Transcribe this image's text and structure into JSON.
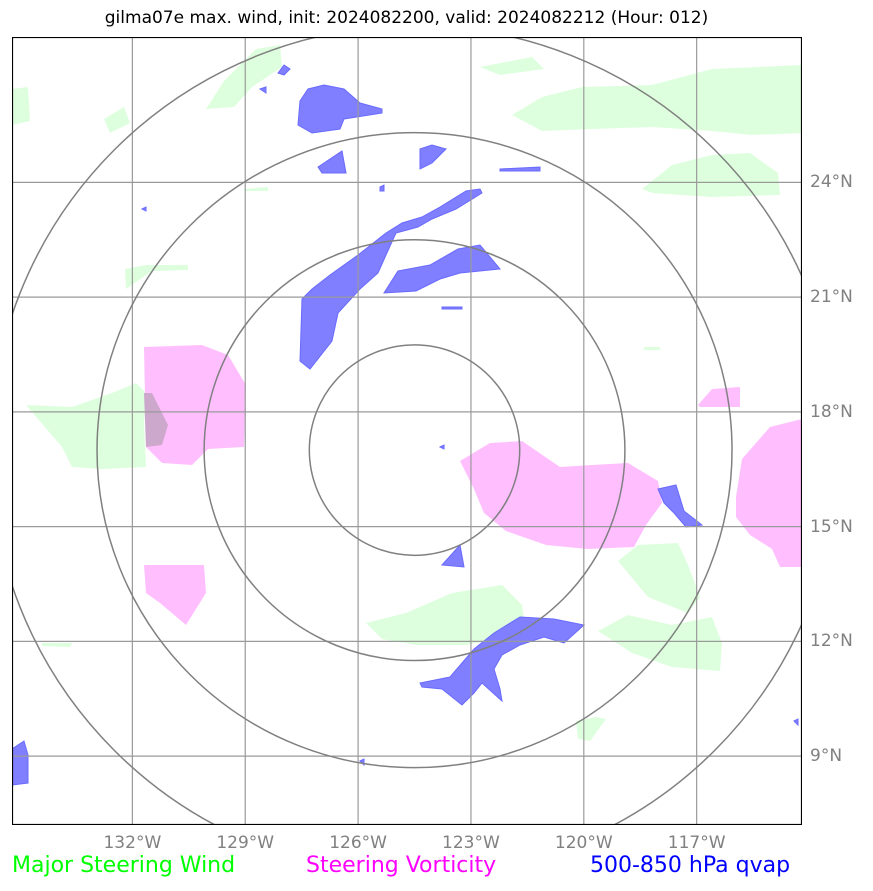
{
  "title": "gilma07e max. wind, init: 2024082200, valid: 2024082212 (Hour: 012)",
  "map": {
    "lon_range": [
      -135.2,
      -114.2
    ],
    "lat_range": [
      7.2,
      27.8
    ],
    "center": {
      "lon": -124.5,
      "lat": 17.0
    },
    "lat_ticks": [
      {
        "value": 24,
        "label": "24°N"
      },
      {
        "value": 21,
        "label": "21°N"
      },
      {
        "value": 18,
        "label": "18°N"
      },
      {
        "value": 15,
        "label": "15°N"
      },
      {
        "value": 12,
        "label": "12°N"
      },
      {
        "value": 9,
        "label": "9°N"
      }
    ],
    "lon_ticks": [
      {
        "value": -132,
        "label": "132°W"
      },
      {
        "value": -129,
        "label": "129°W"
      },
      {
        "value": -126,
        "label": "126°W"
      },
      {
        "value": -123,
        "label": "123°W"
      },
      {
        "value": -120,
        "label": "120°W"
      },
      {
        "value": -117,
        "label": "117°W"
      }
    ]
  },
  "legend": {
    "wind_label": "Major Steering Wind",
    "vorticity_label": "Steering Vorticity",
    "qvap_label": "500-850 hPa qvap"
  },
  "colors": {
    "wind": "#00ff00",
    "wind_fill": "#ddffdd",
    "vorticity": "#ff00ff",
    "vorticity_fill": "#ffbfff",
    "qvap": "#0000ff",
    "qvap_fill": "#7f7fff",
    "grid": "#9a9a9a",
    "rings": "#808080",
    "axis_text": "#808080"
  }
}
